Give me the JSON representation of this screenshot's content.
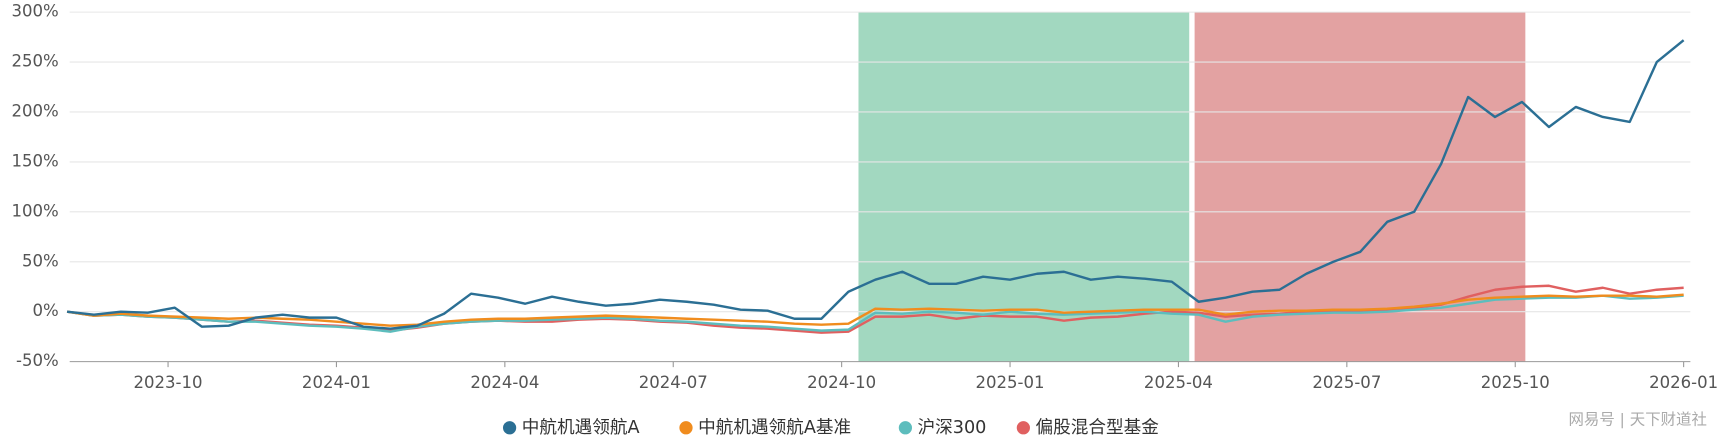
{
  "chart_data": {
    "type": "line",
    "watermark": "网易号 | 天下财道社",
    "xlim": [
      2023.604,
      2026.01
    ],
    "ylim": [
      -50,
      300
    ],
    "xticks": [
      {
        "value": 2023.75,
        "label": "2023-10"
      },
      {
        "value": 2024.0,
        "label": "2024-01"
      },
      {
        "value": 2024.25,
        "label": "2024-04"
      },
      {
        "value": 2024.5,
        "label": "2024-07"
      },
      {
        "value": 2024.75,
        "label": "2024-10"
      },
      {
        "value": 2025.0,
        "label": "2025-01"
      },
      {
        "value": 2025.25,
        "label": "2025-04"
      },
      {
        "value": 2025.5,
        "label": "2025-07"
      },
      {
        "value": 2025.75,
        "label": "2025-10"
      },
      {
        "value": 2026.0,
        "label": "2026-01"
      }
    ],
    "yticks": [
      {
        "value": -50,
        "label": "-50%"
      },
      {
        "value": 0,
        "label": "0%"
      },
      {
        "value": 50,
        "label": "50%"
      },
      {
        "value": 100,
        "label": "100%"
      },
      {
        "value": 150,
        "label": "150%"
      },
      {
        "value": 200,
        "label": "200%"
      },
      {
        "value": 250,
        "label": "250%"
      },
      {
        "value": 300,
        "label": "300%"
      }
    ],
    "grid": true,
    "legend": "bottom",
    "bands": [
      {
        "from": 2024.775,
        "to": 2025.266,
        "color": "#a2d8c0"
      },
      {
        "from": 2025.274,
        "to": 2025.765,
        "color": "#e3a2a2"
      }
    ],
    "x": [
      2023.6,
      2023.64,
      2023.68,
      2023.72,
      2023.76,
      2023.8,
      2023.84,
      2023.88,
      2023.92,
      2023.96,
      2024.0,
      2024.04,
      2024.08,
      2024.12,
      2024.16,
      2024.2,
      2024.24,
      2024.28,
      2024.32,
      2024.36,
      2024.4,
      2024.44,
      2024.48,
      2024.52,
      2024.56,
      2024.6,
      2024.64,
      2024.68,
      2024.72,
      2024.76,
      2024.8,
      2024.84,
      2024.88,
      2024.92,
      2024.96,
      2025.0,
      2025.04,
      2025.08,
      2025.12,
      2025.16,
      2025.2,
      2025.24,
      2025.28,
      2025.32,
      2025.36,
      2025.4,
      2025.44,
      2025.48,
      2025.52,
      2025.56,
      2025.6,
      2025.64,
      2025.68,
      2025.72,
      2025.76,
      2025.8,
      2025.84,
      2025.88,
      2025.92,
      2025.96,
      2026.0
    ],
    "series": [
      {
        "name": "中航机遇领航A",
        "color": "#2b6f94",
        "values": [
          0,
          -3,
          0,
          -1,
          4,
          -15,
          -14,
          -6,
          -3,
          -6,
          -6,
          -15,
          -17,
          -14,
          -2,
          18,
          14,
          8,
          15,
          10,
          6,
          8,
          12,
          10,
          7,
          2,
          1,
          -7,
          -7,
          20,
          32,
          40,
          28,
          28,
          35,
          32,
          38,
          40,
          32,
          35,
          33,
          30,
          10,
          14,
          20,
          22,
          38,
          50,
          60,
          90,
          100,
          148,
          215,
          195,
          210,
          185,
          205,
          195,
          190,
          250,
          272
        ]
      },
      {
        "name": "中航机遇领航A基准",
        "color": "#f08c1e",
        "values": [
          0,
          -4,
          -2,
          -4,
          -5,
          -6,
          -7,
          -6,
          -7,
          -8,
          -10,
          -12,
          -14,
          -13,
          -10,
          -8,
          -7,
          -7,
          -6,
          -5,
          -4,
          -5,
          -6,
          -7,
          -8,
          -9,
          -10,
          -12,
          -13,
          -12,
          3,
          2,
          3,
          2,
          1,
          2,
          2,
          -1,
          0,
          1,
          2,
          2,
          2,
          -3,
          0,
          1,
          1,
          2,
          2,
          3,
          5,
          8,
          12,
          14,
          15,
          16,
          15,
          16,
          16,
          15,
          17
        ]
      },
      {
        "name": "沪深300",
        "color": "#5dbdbd",
        "values": [
          0,
          -4,
          -3,
          -5,
          -6,
          -8,
          -10,
          -10,
          -12,
          -14,
          -15,
          -17,
          -20,
          -15,
          -12,
          -10,
          -9,
          -9,
          -8,
          -7,
          -6,
          -7,
          -9,
          -10,
          -12,
          -14,
          -15,
          -17,
          -19,
          -18,
          -1,
          -2,
          0,
          -1,
          -3,
          0,
          -2,
          -3,
          -2,
          -1,
          0,
          -2,
          -3,
          -10,
          -5,
          -3,
          -2,
          -1,
          -1,
          0,
          2,
          4,
          8,
          12,
          13,
          14,
          14,
          16,
          13,
          14,
          16
        ]
      },
      {
        "name": "偏股混合型基金",
        "color": "#e06060",
        "values": [
          0,
          -4,
          -3,
          -5,
          -6,
          -8,
          -10,
          -9,
          -11,
          -13,
          -14,
          -16,
          -19,
          -16,
          -12,
          -10,
          -9,
          -10,
          -10,
          -8,
          -7,
          -8,
          -10,
          -11,
          -14,
          -16,
          -17,
          -19,
          -21,
          -20,
          -5,
          -5,
          -3,
          -7,
          -4,
          -5,
          -5,
          -9,
          -6,
          -5,
          -2,
          0,
          -1,
          -5,
          -3,
          -2,
          0,
          0,
          1,
          2,
          4,
          7,
          15,
          22,
          25,
          26,
          20,
          24,
          18,
          22,
          24
        ]
      }
    ]
  }
}
